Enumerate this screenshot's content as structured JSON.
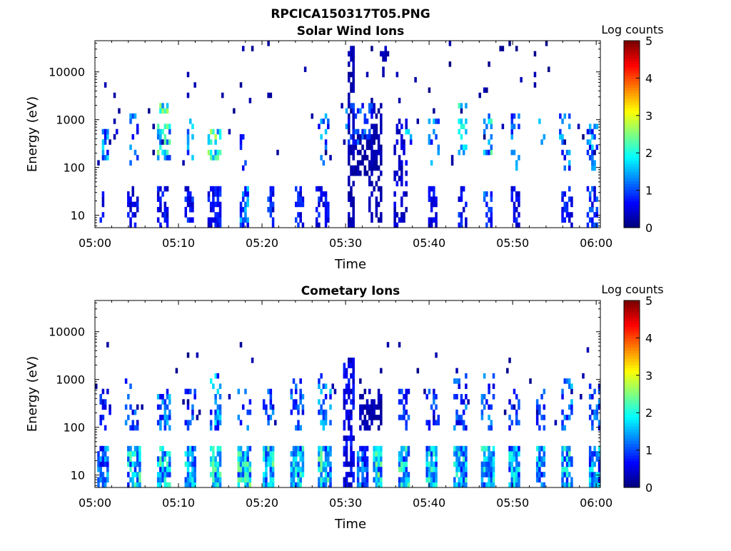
{
  "figure": {
    "title": "RPCICA150317T05.PNG"
  },
  "chart_data": [
    {
      "type": "heatmap",
      "title": "Solar Wind Ions",
      "xlabel": "Time",
      "ylabel": "Energy (eV)",
      "x_ticks": [
        "05:00",
        "05:10",
        "05:20",
        "05:30",
        "05:40",
        "05:50",
        "06:00"
      ],
      "y_ticks": [
        "10",
        "100",
        "1000",
        "10000"
      ],
      "y_scale": "log",
      "ylim": [
        5.5,
        45000
      ],
      "xlim_minutes": [
        0,
        60.5
      ],
      "colorbar": {
        "label": "Log counts",
        "ticks": [
          "0",
          "1",
          "2",
          "3",
          "4",
          "5"
        ],
        "range": [
          0,
          5
        ],
        "colormap": "jet"
      },
      "seed": 17,
      "bursts": [
        {
          "t": 0.8,
          "w": 0.5,
          "lo": 5.5,
          "hi": 30,
          "p": 0.5,
          "amp": 0.8
        },
        {
          "t": 1.3,
          "w": 0.8,
          "lo": 150,
          "hi": 700,
          "p": 0.35,
          "amp": 1.5
        },
        {
          "t": 2.5,
          "w": 0.4,
          "lo": 40,
          "hi": 1000,
          "p": 0.12,
          "amp": 0.5
        },
        {
          "t": 4.5,
          "w": 1.3,
          "lo": 5.5,
          "hi": 40,
          "p": 0.55,
          "amp": 0.7
        },
        {
          "t": 4.6,
          "w": 1.3,
          "lo": 100,
          "hi": 1500,
          "p": 0.3,
          "amp": 1.3
        },
        {
          "t": 8.2,
          "w": 1.4,
          "lo": 5.5,
          "hi": 40,
          "p": 0.55,
          "amp": 0.7
        },
        {
          "t": 8.3,
          "w": 1.5,
          "lo": 150,
          "hi": 900,
          "p": 0.55,
          "amp": 2.2
        },
        {
          "t": 8.3,
          "w": 1.0,
          "lo": 1200,
          "hi": 2200,
          "p": 0.6,
          "amp": 2.6
        },
        {
          "t": 11.3,
          "w": 1.0,
          "lo": 5.5,
          "hi": 40,
          "p": 0.55,
          "amp": 0.8
        },
        {
          "t": 11.4,
          "w": 1.0,
          "lo": 150,
          "hi": 1500,
          "p": 0.35,
          "amp": 1.6
        },
        {
          "t": 14.3,
          "w": 1.5,
          "lo": 5.5,
          "hi": 40,
          "p": 0.55,
          "amp": 0.8
        },
        {
          "t": 14.3,
          "w": 1.5,
          "lo": 150,
          "hi": 600,
          "p": 0.55,
          "amp": 2.4
        },
        {
          "t": 17.9,
          "w": 1.2,
          "lo": 5.5,
          "hi": 40,
          "p": 0.55,
          "amp": 1.4
        },
        {
          "t": 17.7,
          "w": 1.0,
          "lo": 80,
          "hi": 700,
          "p": 0.22,
          "amp": 1.2
        },
        {
          "t": 21.0,
          "w": 1.0,
          "lo": 5.5,
          "hi": 40,
          "p": 0.5,
          "amp": 0.9
        },
        {
          "t": 24.5,
          "w": 1.2,
          "lo": 5.5,
          "hi": 40,
          "p": 0.5,
          "amp": 0.8
        },
        {
          "t": 27.2,
          "w": 1.5,
          "lo": 5.5,
          "hi": 40,
          "p": 0.5,
          "amp": 0.8
        },
        {
          "t": 27.4,
          "w": 1.3,
          "lo": 100,
          "hi": 1500,
          "p": 0.3,
          "amp": 1.5
        },
        {
          "t": 30.6,
          "w": 0.9,
          "lo": 5.5,
          "hi": 35000,
          "p": 0.65,
          "amp": 0.3
        },
        {
          "t": 32.0,
          "w": 1.6,
          "lo": 60,
          "hi": 600,
          "p": 0.5,
          "amp": 0.25
        },
        {
          "t": 33.5,
          "w": 1.5,
          "lo": 8,
          "hi": 2000,
          "p": 0.5,
          "amp": 0.3
        },
        {
          "t": 31.5,
          "w": 3.5,
          "lo": 300,
          "hi": 2500,
          "p": 0.3,
          "amp": 1.2
        },
        {
          "t": 34.6,
          "w": 0.8,
          "lo": 15000,
          "hi": 35000,
          "p": 0.7,
          "amp": 0.3
        },
        {
          "t": 36.5,
          "w": 1.7,
          "lo": 5.5,
          "hi": 1000,
          "p": 0.35,
          "amp": 0.5
        },
        {
          "t": 37.5,
          "w": 0.8,
          "lo": 300,
          "hi": 600,
          "p": 0.5,
          "amp": 1.6
        },
        {
          "t": 40.5,
          "w": 1.2,
          "lo": 5.5,
          "hi": 40,
          "p": 0.5,
          "amp": 0.7
        },
        {
          "t": 40.6,
          "w": 1.2,
          "lo": 100,
          "hi": 1500,
          "p": 0.3,
          "amp": 1.4
        },
        {
          "t": 44.0,
          "w": 1.3,
          "lo": 5.5,
          "hi": 40,
          "p": 0.5,
          "amp": 0.8
        },
        {
          "t": 44.0,
          "w": 1.3,
          "lo": 100,
          "hi": 2000,
          "p": 0.3,
          "amp": 1.9
        },
        {
          "t": 47.0,
          "w": 1.2,
          "lo": 5.5,
          "hi": 40,
          "p": 0.5,
          "amp": 1.3
        },
        {
          "t": 47.0,
          "w": 1.2,
          "lo": 150,
          "hi": 1500,
          "p": 0.4,
          "amp": 2.0
        },
        {
          "t": 50.3,
          "w": 1.0,
          "lo": 5.5,
          "hi": 40,
          "p": 0.5,
          "amp": 0.8
        },
        {
          "t": 50.3,
          "w": 1.2,
          "lo": 80,
          "hi": 1200,
          "p": 0.3,
          "amp": 1.3
        },
        {
          "t": 53.5,
          "w": 1.0,
          "lo": 100,
          "hi": 1200,
          "p": 0.3,
          "amp": 1.4
        },
        {
          "t": 56.5,
          "w": 1.4,
          "lo": 5.5,
          "hi": 40,
          "p": 0.5,
          "amp": 0.8
        },
        {
          "t": 56.2,
          "w": 1.4,
          "lo": 80,
          "hi": 1500,
          "p": 0.3,
          "amp": 1.4
        },
        {
          "t": 59.6,
          "w": 1.4,
          "lo": 5.5,
          "hi": 40,
          "p": 0.5,
          "amp": 1.0
        },
        {
          "t": 59.6,
          "w": 1.4,
          "lo": 80,
          "hi": 800,
          "p": 0.35,
          "amp": 1.4
        }
      ],
      "noise": {
        "p": 0.012,
        "lo": 100,
        "hi": 40000,
        "amp": 0.3
      }
    },
    {
      "type": "heatmap",
      "title": "Cometary Ions",
      "xlabel": "Time",
      "ylabel": "Energy (eV)",
      "x_ticks": [
        "05:00",
        "05:10",
        "05:20",
        "05:30",
        "05:40",
        "05:50",
        "06:00"
      ],
      "y_ticks": [
        "10",
        "100",
        "1000",
        "10000"
      ],
      "y_scale": "log",
      "ylim": [
        5.5,
        45000
      ],
      "xlim_minutes": [
        0,
        60.5
      ],
      "colorbar": {
        "label": "Log counts",
        "ticks": [
          "0",
          "1",
          "2",
          "3",
          "4",
          "5"
        ],
        "range": [
          0,
          5
        ],
        "colormap": "jet"
      },
      "seed": 91,
      "bursts": [
        {
          "t": 1.0,
          "w": 1.2,
          "lo": 5.5,
          "hi": 40,
          "p": 0.7,
          "amp": 1.4
        },
        {
          "t": 1.3,
          "w": 1.3,
          "lo": 80,
          "hi": 600,
          "p": 0.4,
          "amp": 0.9
        },
        {
          "t": 4.7,
          "w": 1.6,
          "lo": 5.5,
          "hi": 45,
          "p": 0.85,
          "amp": 2.0
        },
        {
          "t": 4.5,
          "w": 1.6,
          "lo": 80,
          "hi": 1500,
          "p": 0.35,
          "amp": 1.1
        },
        {
          "t": 8.3,
          "w": 1.6,
          "lo": 5.5,
          "hi": 45,
          "p": 0.85,
          "amp": 2.0
        },
        {
          "t": 8.3,
          "w": 1.6,
          "lo": 80,
          "hi": 700,
          "p": 0.5,
          "amp": 1.4
        },
        {
          "t": 11.4,
          "w": 1.2,
          "lo": 5.5,
          "hi": 45,
          "p": 0.85,
          "amp": 1.9
        },
        {
          "t": 11.4,
          "w": 1.2,
          "lo": 80,
          "hi": 700,
          "p": 0.4,
          "amp": 1.2
        },
        {
          "t": 14.5,
          "w": 1.5,
          "lo": 5.5,
          "hi": 45,
          "p": 0.85,
          "amp": 2.1
        },
        {
          "t": 14.4,
          "w": 1.5,
          "lo": 80,
          "hi": 1500,
          "p": 0.45,
          "amp": 1.6
        },
        {
          "t": 17.8,
          "w": 1.6,
          "lo": 5.5,
          "hi": 45,
          "p": 0.85,
          "amp": 2.2
        },
        {
          "t": 17.8,
          "w": 1.6,
          "lo": 80,
          "hi": 700,
          "p": 0.35,
          "amp": 1.2
        },
        {
          "t": 20.7,
          "w": 1.4,
          "lo": 5.5,
          "hi": 45,
          "p": 0.85,
          "amp": 2.1
        },
        {
          "t": 20.7,
          "w": 1.4,
          "lo": 80,
          "hi": 700,
          "p": 0.35,
          "amp": 1.2
        },
        {
          "t": 24.2,
          "w": 1.6,
          "lo": 5.5,
          "hi": 45,
          "p": 0.85,
          "amp": 2.0
        },
        {
          "t": 24.2,
          "w": 1.6,
          "lo": 80,
          "hi": 1000,
          "p": 0.35,
          "amp": 1.2
        },
        {
          "t": 27.4,
          "w": 1.6,
          "lo": 5.5,
          "hi": 45,
          "p": 0.85,
          "amp": 2.1
        },
        {
          "t": 27.4,
          "w": 1.6,
          "lo": 80,
          "hi": 1200,
          "p": 0.4,
          "amp": 1.5
        },
        {
          "t": 30.5,
          "w": 1.4,
          "lo": 5.5,
          "hi": 3000,
          "p": 0.6,
          "amp": 0.7
        },
        {
          "t": 32.0,
          "w": 1.5,
          "lo": 5.5,
          "hi": 45,
          "p": 0.8,
          "amp": 1.3
        },
        {
          "t": 33.0,
          "w": 2.5,
          "lo": 80,
          "hi": 700,
          "p": 0.55,
          "amp": 0.3
        },
        {
          "t": 33.8,
          "w": 1.2,
          "lo": 5.5,
          "hi": 45,
          "p": 0.85,
          "amp": 2.2
        },
        {
          "t": 37.0,
          "w": 1.5,
          "lo": 5.5,
          "hi": 45,
          "p": 0.85,
          "amp": 2.0
        },
        {
          "t": 37.0,
          "w": 1.5,
          "lo": 80,
          "hi": 700,
          "p": 0.4,
          "amp": 1.0
        },
        {
          "t": 40.2,
          "w": 1.4,
          "lo": 5.5,
          "hi": 45,
          "p": 0.85,
          "amp": 1.9
        },
        {
          "t": 40.4,
          "w": 1.6,
          "lo": 80,
          "hi": 700,
          "p": 0.4,
          "amp": 1.1
        },
        {
          "t": 43.7,
          "w": 1.6,
          "lo": 5.5,
          "hi": 45,
          "p": 0.85,
          "amp": 1.9
        },
        {
          "t": 43.7,
          "w": 1.6,
          "lo": 80,
          "hi": 1200,
          "p": 0.35,
          "amp": 1.2
        },
        {
          "t": 47.0,
          "w": 1.5,
          "lo": 5.5,
          "hi": 45,
          "p": 0.85,
          "amp": 1.9
        },
        {
          "t": 47.0,
          "w": 1.5,
          "lo": 80,
          "hi": 1500,
          "p": 0.35,
          "amp": 1.3
        },
        {
          "t": 50.3,
          "w": 1.4,
          "lo": 5.5,
          "hi": 45,
          "p": 0.85,
          "amp": 1.8
        },
        {
          "t": 50.3,
          "w": 1.4,
          "lo": 80,
          "hi": 700,
          "p": 0.35,
          "amp": 1.0
        },
        {
          "t": 53.3,
          "w": 1.2,
          "lo": 5.5,
          "hi": 45,
          "p": 0.85,
          "amp": 1.8
        },
        {
          "t": 53.3,
          "w": 1.2,
          "lo": 80,
          "hi": 800,
          "p": 0.35,
          "amp": 1.1
        },
        {
          "t": 56.5,
          "w": 1.6,
          "lo": 5.5,
          "hi": 45,
          "p": 0.85,
          "amp": 2.0
        },
        {
          "t": 56.5,
          "w": 1.6,
          "lo": 80,
          "hi": 1000,
          "p": 0.4,
          "amp": 1.4
        },
        {
          "t": 59.7,
          "w": 1.4,
          "lo": 5.5,
          "hi": 45,
          "p": 0.85,
          "amp": 1.7
        },
        {
          "t": 59.7,
          "w": 1.4,
          "lo": 80,
          "hi": 800,
          "p": 0.4,
          "amp": 1.2
        }
      ],
      "noise": {
        "p": 0.01,
        "lo": 100,
        "hi": 6000,
        "amp": 0.3
      }
    }
  ]
}
